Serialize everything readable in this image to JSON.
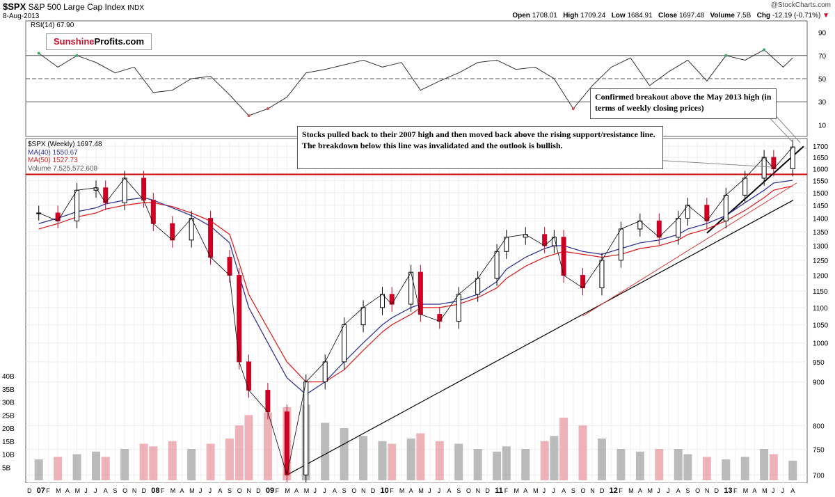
{
  "header": {
    "symbol": "$SPX",
    "name": "S&P 500 Large Cap Index",
    "exchange": "INDX",
    "date": "8-Aug-2013",
    "watermark": "@StockCharts.com",
    "open_label": "Open",
    "open": "1708.01",
    "high_label": "High",
    "high": "1709.24",
    "low_label": "Low",
    "low": "1684.91",
    "close_label": "Close",
    "close": "1697.48",
    "volume_label": "Volume",
    "volume": "7.5B",
    "chg_label": "Chg",
    "chg": "-12.19 (-0.71%)"
  },
  "logo": {
    "part1": "Sunshine",
    "part2": "Profits.com"
  },
  "annotations": {
    "note1": "Confirmed breakout above the May 2013 high (in terms of weekly closing prices)",
    "note2": "Stocks pulled back to their 2007 high and then moved back above the rising support/resistance line. The breakdown below this line was invalidated and the outlook is bullish."
  },
  "legend": {
    "price": "$SPX (Weekly) 1697.48",
    "ma40": "MA(40) 1550.67",
    "ma50": "MA(50) 1527.73",
    "volume": "Volume 7,525,572,608"
  },
  "colors": {
    "up": "#000000",
    "down": "#cc0022",
    "ma40": "#333399",
    "ma50": "#dd2222",
    "vol_up": "#aaaaaa",
    "vol_down": "#e8a0a8",
    "resistance": "#cc0000"
  },
  "chart_data": [
    {
      "type": "line",
      "title": "RSI(14) 67.90",
      "ylim": [
        0,
        100
      ],
      "y_ticks": [
        10,
        30,
        50,
        70,
        90
      ],
      "reference_lines": [
        30,
        50,
        70
      ],
      "last_value": 67.9,
      "x": [
        "2007-01",
        "2007-03",
        "2007-05",
        "2007-07",
        "2007-09",
        "2007-11",
        "2008-01",
        "2008-03",
        "2008-05",
        "2008-07",
        "2008-09",
        "2008-11",
        "2009-01",
        "2009-03",
        "2009-05",
        "2009-07",
        "2009-09",
        "2009-11",
        "2010-01",
        "2010-03",
        "2010-05",
        "2010-07",
        "2010-09",
        "2010-11",
        "2011-01",
        "2011-03",
        "2011-05",
        "2011-07",
        "2011-09",
        "2011-11",
        "2012-01",
        "2012-03",
        "2012-05",
        "2012-07",
        "2012-09",
        "2012-11",
        "2013-01",
        "2013-03",
        "2013-05",
        "2013-07",
        "2013-08"
      ],
      "values": [
        72,
        60,
        70,
        64,
        55,
        60,
        38,
        40,
        50,
        52,
        36,
        18,
        24,
        34,
        55,
        58,
        62,
        66,
        60,
        64,
        40,
        48,
        55,
        64,
        66,
        58,
        60,
        50,
        24,
        44,
        60,
        68,
        44,
        56,
        66,
        48,
        70,
        66,
        75,
        60,
        68
      ]
    },
    {
      "type": "candlestick",
      "title": "$SPX (Weekly) 1697.48",
      "ylim": [
        690,
        1720
      ],
      "y_ticks": [
        700,
        750,
        800,
        900,
        950,
        1000,
        1050,
        1100,
        1150,
        1200,
        1250,
        1300,
        1350,
        1400,
        1450,
        1500,
        1550,
        1600,
        1650,
        1700
      ],
      "resistance": 1576,
      "x_tick_labels": [
        "D",
        "07",
        "F",
        "M",
        "A",
        "M",
        "J",
        "J",
        "A",
        "S",
        "O",
        "N",
        "D",
        "08",
        "F",
        "M",
        "A",
        "M",
        "J",
        "J",
        "A",
        "S",
        "O",
        "N",
        "D",
        "09",
        "F",
        "M",
        "A",
        "M",
        "J",
        "J",
        "A",
        "S",
        "O",
        "N",
        "D",
        "10",
        "F",
        "M",
        "A",
        "M",
        "J",
        "J",
        "A",
        "S",
        "O",
        "N",
        "D",
        "11",
        "F",
        "M",
        "A",
        "M",
        "J",
        "J",
        "A",
        "S",
        "O",
        "N",
        "D",
        "12",
        "F",
        "M",
        "A",
        "M",
        "J",
        "J",
        "A",
        "S",
        "O",
        "N",
        "D",
        "13",
        "F",
        "M",
        "A",
        "M",
        "J",
        "J",
        "A"
      ],
      "x": [
        "2007-01",
        "2007-03",
        "2007-05",
        "2007-07",
        "2007-08",
        "2007-10",
        "2007-12",
        "2008-01",
        "2008-03",
        "2008-05",
        "2008-07",
        "2008-09",
        "2008-10",
        "2008-11",
        "2009-01",
        "2009-03",
        "2009-05",
        "2009-07",
        "2009-09",
        "2009-11",
        "2010-01",
        "2010-02",
        "2010-04",
        "2010-05",
        "2010-07",
        "2010-09",
        "2010-11",
        "2011-01",
        "2011-02",
        "2011-04",
        "2011-06",
        "2011-07",
        "2011-08",
        "2011-10",
        "2011-12",
        "2012-02",
        "2012-04",
        "2012-06",
        "2012-08",
        "2012-09",
        "2012-11",
        "2013-01",
        "2013-03",
        "2013-05",
        "2013-06",
        "2013-08"
      ],
      "close": [
        1420,
        1390,
        1510,
        1520,
        1460,
        1560,
        1470,
        1380,
        1320,
        1400,
        1260,
        1200,
        950,
        880,
        830,
        700,
        900,
        950,
        1050,
        1100,
        1140,
        1110,
        1210,
        1080,
        1060,
        1140,
        1190,
        1280,
        1330,
        1340,
        1300,
        1330,
        1200,
        1160,
        1250,
        1360,
        1390,
        1330,
        1400,
        1450,
        1390,
        1490,
        1560,
        1650,
        1600,
        1697
      ],
      "ma40": [
        1380,
        1400,
        1425,
        1440,
        1455,
        1470,
        1480,
        1470,
        1440,
        1410,
        1370,
        1310,
        1200,
        1100,
        1000,
        910,
        870,
        900,
        950,
        1000,
        1050,
        1070,
        1100,
        1110,
        1110,
        1120,
        1140,
        1180,
        1220,
        1260,
        1290,
        1300,
        1300,
        1280,
        1270,
        1290,
        1310,
        1320,
        1340,
        1360,
        1380,
        1410,
        1460,
        1510,
        1540,
        1551
      ],
      "ma50": [
        1360,
        1380,
        1405,
        1420,
        1435,
        1450,
        1460,
        1460,
        1445,
        1420,
        1390,
        1340,
        1240,
        1140,
        1040,
        950,
        900,
        900,
        930,
        980,
        1030,
        1050,
        1080,
        1100,
        1100,
        1110,
        1130,
        1160,
        1190,
        1230,
        1260,
        1270,
        1280,
        1270,
        1260,
        1270,
        1290,
        1300,
        1320,
        1340,
        1360,
        1390,
        1430,
        1480,
        1510,
        1528
      ]
    },
    {
      "type": "bar",
      "title": "Volume 7,525,572,608",
      "ylim": [
        0,
        40
      ],
      "y_ticks": [
        "5B",
        "10B",
        "15B",
        "20B",
        "25B",
        "30B",
        "35B",
        "40B"
      ],
      "values": [
        8,
        9,
        10,
        11,
        9,
        12,
        14,
        13,
        15,
        12,
        14,
        16,
        21,
        25,
        26,
        28,
        29,
        22,
        20,
        17,
        15,
        14,
        16,
        18,
        15,
        14,
        12,
        11,
        13,
        12,
        15,
        17,
        24,
        21,
        16,
        12,
        11,
        12,
        12,
        10,
        9,
        8,
        9,
        12,
        10,
        7.5
      ]
    }
  ]
}
